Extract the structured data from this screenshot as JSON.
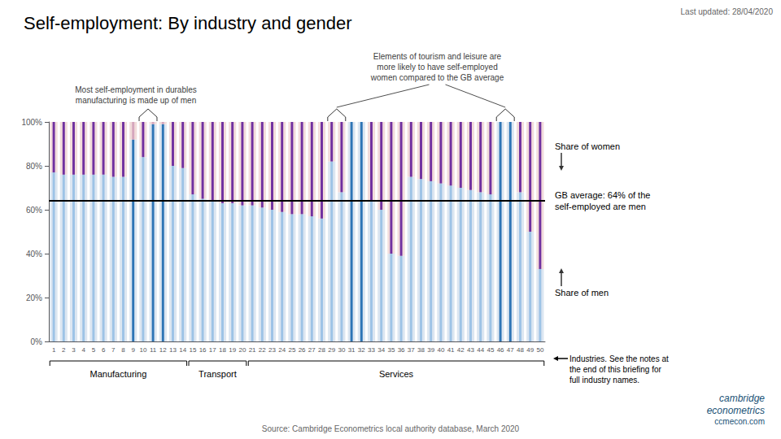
{
  "chart_data": {
    "type": "bar",
    "title": "Self-employment: By industry and gender",
    "last_updated": "Last updated: 28/04/2020",
    "source": "Source: Cambridge Econometrics local authority database, March 2020",
    "stacked": true,
    "grid": false,
    "categories": [
      "1",
      "2",
      "3",
      "4",
      "5",
      "6",
      "7",
      "8",
      "9",
      "10",
      "11",
      "12",
      "13",
      "14",
      "15",
      "16",
      "17",
      "18",
      "19",
      "20",
      "21",
      "22",
      "23",
      "24",
      "25",
      "26",
      "27",
      "28",
      "29",
      "30",
      "31",
      "32",
      "33",
      "34",
      "35",
      "36",
      "37",
      "38",
      "39",
      "40",
      "41",
      "42",
      "43",
      "44",
      "45",
      "46",
      "47",
      "48",
      "49",
      "50"
    ],
    "ylim": [
      0,
      1.0
    ],
    "yticks": [
      {
        "value": 0,
        "label": "0%"
      },
      {
        "value": 0.2,
        "label": "20%"
      },
      {
        "value": 0.4,
        "label": "40%"
      },
      {
        "value": 0.6,
        "label": "60%"
      },
      {
        "value": 0.8,
        "label": "80%"
      },
      {
        "value": 1.0,
        "label": "100%"
      }
    ],
    "series": [
      {
        "name": "Share of men",
        "color": "#dce6f1",
        "colors": [
          "#9dc3e6",
          "#9dc3e6",
          "#9dc3e6",
          "#9dc3e6",
          "#9dc3e6",
          "#9dc3e6",
          "#9dc3e6",
          "#9dc3e6",
          "#2e75b6",
          "#9dc3e6",
          "#2e75b6",
          "#2e75b6",
          "#9dc3e6",
          "#9dc3e6",
          "#9dc3e6",
          "#9dc3e6",
          "#9dc3e6",
          "#9dc3e6",
          "#9dc3e6",
          "#9dc3e6",
          "#9dc3e6",
          "#9dc3e6",
          "#9dc3e6",
          "#9dc3e6",
          "#9dc3e6",
          "#9dc3e6",
          "#9dc3e6",
          "#9dc3e6",
          "#9dc3e6",
          "#9dc3e6",
          "#2e75b6",
          "#2e75b6",
          "#9dc3e6",
          "#9dc3e6",
          "#9dc3e6",
          "#9dc3e6",
          "#9dc3e6",
          "#9dc3e6",
          "#9dc3e6",
          "#9dc3e6",
          "#9dc3e6",
          "#9dc3e6",
          "#9dc3e6",
          "#9dc3e6",
          "#9dc3e6",
          "#2e75b6",
          "#2e75b6",
          "#9dc3e6",
          "#9dc3e6",
          "#9dc3e6"
        ],
        "values": [
          0.77,
          0.76,
          0.76,
          0.76,
          0.76,
          0.76,
          0.75,
          0.75,
          0.92,
          0.84,
          0.99,
          0.99,
          0.8,
          0.79,
          0.67,
          0.65,
          0.64,
          0.63,
          0.63,
          0.62,
          0.62,
          0.61,
          0.6,
          0.59,
          0.58,
          0.58,
          0.57,
          0.56,
          0.82,
          0.68,
          1.0,
          1.0,
          0.64,
          0.6,
          0.4,
          0.39,
          0.75,
          0.74,
          0.73,
          0.72,
          0.71,
          0.7,
          0.69,
          0.68,
          0.67,
          1.0,
          1.0,
          0.68,
          0.5,
          0.33
        ]
      },
      {
        "name": "Share of women",
        "color": "#f2dcdb",
        "colors": [
          "#7030a0",
          "#7030a0",
          "#7030a0",
          "#7030a0",
          "#7030a0",
          "#7030a0",
          "#7030a0",
          "#7030a0",
          "#d5a6bd",
          "#7030a0",
          "#d5a6bd",
          "#d5a6bd",
          "#7030a0",
          "#7030a0",
          "#7030a0",
          "#7030a0",
          "#7030a0",
          "#7030a0",
          "#7030a0",
          "#7030a0",
          "#7030a0",
          "#7030a0",
          "#7030a0",
          "#7030a0",
          "#7030a0",
          "#7030a0",
          "#7030a0",
          "#7030a0",
          "#7030a0",
          "#7030a0",
          "#d5a6bd",
          "#d5a6bd",
          "#7030a0",
          "#7030a0",
          "#7030a0",
          "#7030a0",
          "#7030a0",
          "#7030a0",
          "#7030a0",
          "#7030a0",
          "#7030a0",
          "#7030a0",
          "#7030a0",
          "#7030a0",
          "#7030a0",
          "#d5a6bd",
          "#d5a6bd",
          "#7030a0",
          "#7030a0",
          "#7030a0"
        ],
        "values": [
          0.23,
          0.24,
          0.24,
          0.24,
          0.24,
          0.24,
          0.25,
          0.25,
          0.08,
          0.16,
          0.01,
          0.01,
          0.2,
          0.21,
          0.33,
          0.35,
          0.36,
          0.37,
          0.37,
          0.38,
          0.38,
          0.39,
          0.4,
          0.41,
          0.42,
          0.42,
          0.43,
          0.44,
          0.18,
          0.32,
          0,
          0,
          0.36,
          0.4,
          0.6,
          0.61,
          0.25,
          0.26,
          0.27,
          0.28,
          0.29,
          0.3,
          0.31,
          0.32,
          0.33,
          0,
          0,
          0.32,
          0.5,
          0.67
        ]
      }
    ],
    "reference_lines": [
      {
        "y": 0.64,
        "color": "#000000",
        "label": "GB average: 64% of the\nself-employed are men"
      }
    ],
    "groups": [
      {
        "label": "Manufacturing",
        "from": "1",
        "to": "14"
      },
      {
        "label": "Transport",
        "from": "15",
        "to": "20"
      },
      {
        "label": "Services",
        "from": "21",
        "to": "50"
      }
    ],
    "annotations": [
      {
        "text": "Most self-employment in durables\nmanufacturing is made up of men",
        "over": [
          [
            "10",
            "11"
          ]
        ]
      },
      {
        "text": "Elements of tourism and leisure are\nmore likely to have self-employed\nwomen compared to the GB average",
        "over": [
          [
            "29",
            "30"
          ],
          [
            "46",
            "47"
          ]
        ]
      }
    ],
    "note": "Industries. See the notes at\nthe end of this briefing for\nfull industry names.",
    "credits": [
      "cambridge",
      "econometrics",
      "ccmecon.com"
    ]
  }
}
